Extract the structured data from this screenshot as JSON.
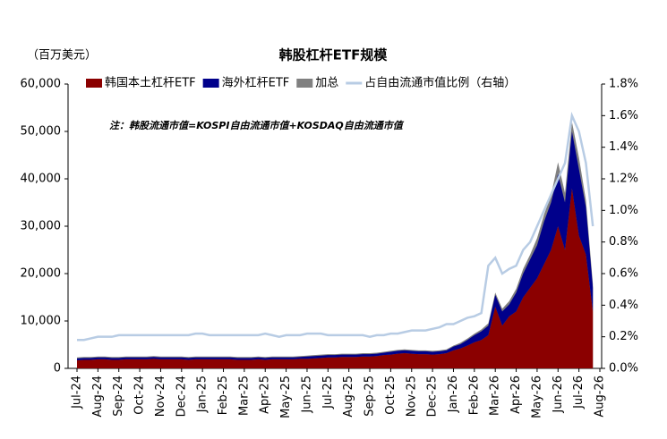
{
  "chart_data": {
    "type": "stacked-area-line",
    "title": "韩股杠杆ETF规模",
    "y_axis_label": "（百万美元）",
    "annotation": "注：韩股流通市值=KOSPI自由流通市值+KOSDAQ自由流通市值",
    "categories": [
      "Jul-24",
      null,
      null,
      "Aug-24",
      null,
      null,
      "Sep-24",
      null,
      null,
      "Oct-24",
      null,
      null,
      "Nov-24",
      null,
      null,
      "Dec-24",
      null,
      null,
      "Jan-25",
      null,
      null,
      "Feb-25",
      null,
      null,
      "Mar-25",
      null,
      null,
      "Apr-25",
      null,
      null,
      "May-25",
      null,
      null,
      "Jun-25",
      null,
      null,
      "Jul-25",
      null,
      null,
      "Aug-25",
      null,
      null,
      "Sep-25",
      null,
      null,
      "Oct-25",
      null,
      null,
      "Nov-25",
      null,
      null,
      "Dec-25",
      null,
      null,
      "Jan-26",
      null,
      null,
      "Feb-26",
      null,
      null,
      "Mar-26",
      null,
      null,
      "Apr-26",
      null,
      null,
      "May-26",
      null,
      null,
      "Jun-26",
      null,
      null,
      "Jul-26",
      null,
      null,
      "Aug-26"
    ],
    "series": [
      {
        "name": "韩国本土杠杆ETF",
        "color": "#8b0000",
        "stack": true,
        "values": [
          1700,
          1800,
          1800,
          1900,
          1900,
          1800,
          1800,
          1900,
          1900,
          1900,
          1900,
          2000,
          1900,
          1900,
          1900,
          1900,
          1800,
          1900,
          1900,
          1900,
          1900,
          1900,
          1900,
          1800,
          1800,
          1800,
          1900,
          1800,
          1900,
          1900,
          1900,
          1900,
          2000,
          2000,
          2100,
          2200,
          2300,
          2300,
          2400,
          2400,
          2400,
          2500,
          2500,
          2600,
          2800,
          2900,
          3100,
          3200,
          3100,
          3000,
          3000,
          2900,
          3000,
          3200,
          3800,
          4200,
          4800,
          5500,
          6000,
          7000,
          13000,
          9000,
          11000,
          12000,
          15000,
          17000,
          19000,
          22000,
          25000,
          30000,
          25000,
          38000,
          28000,
          24000,
          12000,
          null
        ]
      },
      {
        "name": "海外杠杆ETF",
        "color": "#00008b",
        "stack": true,
        "values": [
          400,
          400,
          400,
          400,
          400,
          400,
          400,
          400,
          400,
          400,
          400,
          400,
          400,
          400,
          400,
          400,
          400,
          400,
          400,
          400,
          400,
          400,
          400,
          400,
          400,
          400,
          400,
          400,
          400,
          400,
          400,
          400,
          400,
          500,
          500,
          500,
          500,
          500,
          500,
          500,
          500,
          500,
          500,
          500,
          500,
          600,
          600,
          600,
          600,
          600,
          600,
          600,
          600,
          600,
          800,
          900,
          1200,
          1500,
          1800,
          2000,
          2500,
          3000,
          2500,
          4000,
          5000,
          6000,
          7000,
          9000,
          10000,
          11000,
          10000,
          12000,
          14000,
          10000,
          5000,
          null
        ]
      },
      {
        "name": "加总",
        "color": "#808080",
        "stack": false,
        "values": [
          2300,
          2400,
          2400,
          2500,
          2500,
          2400,
          2400,
          2500,
          2500,
          2500,
          2500,
          2600,
          2500,
          2500,
          2500,
          2500,
          2400,
          2500,
          2500,
          2500,
          2500,
          2500,
          2500,
          2400,
          2400,
          2400,
          2500,
          2400,
          2500,
          2500,
          2500,
          2500,
          2600,
          2700,
          2800,
          2900,
          3000,
          3000,
          3100,
          3100,
          3100,
          3200,
          3200,
          3300,
          3500,
          3700,
          3900,
          4000,
          3900,
          3800,
          3800,
          3700,
          3800,
          4000,
          4800,
          5400,
          6300,
          7300,
          8200,
          9500,
          16000,
          12600,
          14200,
          16800,
          21000,
          24000,
          27500,
          32500,
          36500,
          43500,
          37000,
          52000,
          44500,
          35500,
          17800,
          null
        ]
      },
      {
        "name": "占自由流通市值比例（右轴）",
        "color": "#b8cce4",
        "axis": "y2",
        "values": [
          0.18,
          0.18,
          0.19,
          0.2,
          0.2,
          0.2,
          0.21,
          0.21,
          0.21,
          0.21,
          0.21,
          0.21,
          0.21,
          0.21,
          0.21,
          0.21,
          0.21,
          0.22,
          0.22,
          0.21,
          0.21,
          0.21,
          0.21,
          0.21,
          0.21,
          0.21,
          0.21,
          0.22,
          0.21,
          0.2,
          0.21,
          0.21,
          0.21,
          0.22,
          0.22,
          0.22,
          0.21,
          0.21,
          0.21,
          0.21,
          0.21,
          0.21,
          0.2,
          0.21,
          0.21,
          0.22,
          0.22,
          0.23,
          0.24,
          0.24,
          0.24,
          0.25,
          0.26,
          0.28,
          0.28,
          0.3,
          0.32,
          0.33,
          0.35,
          0.65,
          0.7,
          0.6,
          0.63,
          0.65,
          0.75,
          0.8,
          0.9,
          1.0,
          1.1,
          1.2,
          1.3,
          1.6,
          1.5,
          1.3,
          0.9,
          null
        ]
      }
    ],
    "ylim": [
      0,
      60000
    ],
    "yticks": [
      0,
      {
        "value": 10000,
        "label": "10,000"
      },
      {
        "value": 20000,
        "label": "20,000"
      },
      {
        "value": 30000,
        "label": "30,000"
      },
      {
        "value": 40000,
        "label": "40,000"
      },
      {
        "value": 50000,
        "label": "50,000"
      },
      {
        "value": 60000,
        "label": "60,000"
      }
    ],
    "y2lim": [
      0,
      1.8
    ],
    "y2ticks": [
      {
        "value": 0,
        "label": "0.0%"
      },
      {
        "value": 0.2,
        "label": "0.2%"
      },
      {
        "value": 0.4,
        "label": "0.4%"
      },
      {
        "value": 0.6,
        "label": "0.6%"
      },
      {
        "value": 0.8,
        "label": "0.8%"
      },
      {
        "value": 1.0,
        "label": "1.0%"
      },
      {
        "value": 1.2,
        "label": "1.2%"
      },
      {
        "value": 1.4,
        "label": "1.4%"
      },
      {
        "value": 1.6,
        "label": "1.6%"
      },
      {
        "value": 1.8,
        "label": "1.8%"
      }
    ],
    "grid": false,
    "legend": "top"
  }
}
